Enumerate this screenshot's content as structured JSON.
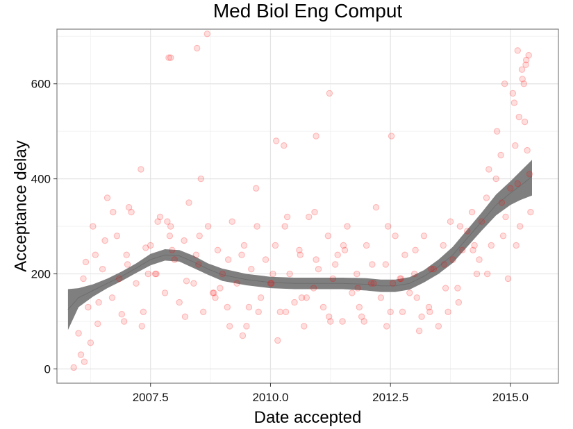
{
  "chart_data": {
    "type": "scatter",
    "title": "Med Biol Eng Comput",
    "xlabel": "Date accepted",
    "ylabel": "Acceptance delay",
    "xlim": [
      2005.55,
      2016.0
    ],
    "ylim": [
      -30,
      715
    ],
    "x_ticks": [
      2007.5,
      2010.0,
      2012.5,
      2015.0
    ],
    "x_tick_labels": [
      "2007.5",
      "2010.0",
      "2012.5",
      "2015.0"
    ],
    "y_ticks": [
      0,
      200,
      400,
      600
    ],
    "y_tick_labels": [
      "0",
      "200",
      "400",
      "600"
    ],
    "grid": true,
    "point_color": "#ff0000",
    "smooth_color": "#7f7f7f",
    "series": [
      {
        "kind": "points",
        "x": [
          2005.9,
          2006.0,
          2006.1,
          2006.15,
          2006.2,
          2006.3,
          2006.4,
          2006.5,
          2006.6,
          2006.7,
          2006.8,
          2006.9,
          2007.0,
          2007.1,
          2007.2,
          2007.3,
          2007.4,
          2007.5,
          2007.6,
          2007.7,
          2007.8,
          2007.9,
          2008.0,
          2008.1,
          2008.2,
          2008.3,
          2008.4,
          2008.5,
          2008.6,
          2008.7,
          2008.8,
          2008.9,
          2009.0,
          2009.1,
          2009.2,
          2009.3,
          2009.4,
          2009.5,
          2009.6,
          2009.7,
          2009.8,
          2009.9,
          2010.0,
          2010.1,
          2010.2,
          2010.3,
          2010.4,
          2010.5,
          2010.6,
          2010.7,
          2010.8,
          2010.9,
          2011.0,
          2011.1,
          2011.2,
          2011.3,
          2011.4,
          2011.5,
          2011.6,
          2011.7,
          2011.8,
          2011.9,
          2012.0,
          2012.1,
          2012.2,
          2012.3,
          2012.4,
          2012.5,
          2012.6,
          2012.7,
          2012.8,
          2012.9,
          2013.0,
          2013.1,
          2013.2,
          2013.3,
          2013.4,
          2013.5,
          2013.6,
          2013.7,
          2013.8,
          2013.9,
          2014.0,
          2014.1,
          2014.2,
          2014.3,
          2014.4,
          2014.5,
          2014.6,
          2014.7,
          2014.8,
          2014.9,
          2015.0,
          2015.1,
          2015.2,
          2015.3,
          2015.4,
          2006.05,
          2006.25,
          2006.55,
          2006.85,
          2007.05,
          2007.35,
          2007.65,
          2007.95,
          2008.25,
          2008.55,
          2008.85,
          2009.15,
          2009.45,
          2009.75,
          2010.05,
          2010.35,
          2010.65,
          2010.95,
          2011.25,
          2011.55,
          2011.85,
          2012.15,
          2012.45,
          2012.75,
          2013.05,
          2013.35,
          2013.65,
          2013.95,
          2014.25,
          2014.55,
          2014.85,
          2015.15,
          2015.35,
          2006.12,
          2006.42,
          2006.72,
          2007.02,
          2007.32,
          2007.62,
          2007.92,
          2008.22,
          2008.52,
          2008.82,
          2009.12,
          2009.42,
          2009.72,
          2010.02,
          2010.32,
          2010.62,
          2010.92,
          2011.22,
          2011.52,
          2011.82,
          2012.12,
          2012.42,
          2012.72,
          2013.02,
          2013.32,
          2013.62,
          2013.92,
          2014.22,
          2014.52,
          2014.82,
          2015.12,
          2015.42,
          2006.35,
          2006.95,
          2007.45,
          2007.85,
          2008.45,
          2008.95,
          2009.55,
          2010.15,
          2010.75,
          2011.35,
          2011.95,
          2012.55,
          2013.15,
          2013.75,
          2014.35,
          2014.95,
          2015.05,
          2015.25,
          2015.32,
          2015.38,
          2007.88,
          2007.92,
          2008.47,
          2008.68,
          2010.12,
          2010.28,
          2010.95,
          2011.23,
          2012.52,
          2014.72,
          2014.88,
          2015.08,
          2015.18,
          2015.28,
          2015.33,
          2015.24,
          2015.15
        ],
        "y": [
          3,
          75,
          190,
          225,
          130,
          300,
          95,
          210,
          360,
          150,
          280,
          115,
          240,
          330,
          180,
          420,
          255,
          260,
          200,
          320,
          160,
          280,
          230,
          140,
          270,
          350,
          180,
          220,
          120,
          300,
          160,
          250,
          200,
          130,
          310,
          180,
          240,
          90,
          210,
          380,
          150,
          230,
          180,
          260,
          120,
          300,
          200,
          140,
          250,
          90,
          320,
          170,
          210,
          130,
          280,
          190,
          240,
          100,
          300,
          160,
          200,
          110,
          260,
          180,
          340,
          150,
          220,
          120,
          280,
          190,
          240,
          160,
          200,
          80,
          280,
          130,
          210,
          90,
          260,
          120,
          230,
          170,
          250,
          290,
          330,
          200,
          310,
          360,
          260,
          400,
          450,
          320,
          380,
          470,
          300,
          520,
          410,
          30,
          55,
          270,
          190,
          340,
          120,
          310,
          250,
          185,
          400,
          150,
          90,
          260,
          120,
          200,
          320,
          150,
          230,
          100,
          250,
          130,
          180,
          300,
          120,
          150,
          210,
          170,
          300,
          260,
          420,
          280,
          390,
          460,
          15,
          140,
          330,
          220,
          90,
          200,
          300,
          110,
          280,
          160,
          230,
          70,
          300,
          180,
          120,
          240,
          330,
          110,
          260,
          170,
          220,
          90,
          190,
          250,
          120,
          220,
          140,
          250,
          200,
          350,
          260,
          330,
          240,
          100,
          200,
          310,
          240,
          170,
          130,
          60,
          150,
          220,
          100,
          180,
          110,
          310,
          230,
          190,
          580,
          610,
          640,
          660,
          655,
          655,
          675,
          705,
          480,
          470,
          490,
          580,
          490,
          500,
          600,
          560,
          530,
          600,
          650,
          630,
          670
        ]
      },
      {
        "kind": "smooth",
        "x": [
          2005.78,
          2006.0,
          2006.3,
          2006.6,
          2006.9,
          2007.2,
          2007.5,
          2007.8,
          2008.1,
          2008.4,
          2008.7,
          2009.0,
          2009.5,
          2010.0,
          2010.5,
          2011.0,
          2011.5,
          2012.0,
          2012.3,
          2012.6,
          2012.9,
          2013.2,
          2013.5,
          2013.8,
          2014.1,
          2014.4,
          2014.7,
          2015.0,
          2015.2,
          2015.45
        ],
        "y": [
          125,
          150,
          165,
          180,
          195,
          212,
          230,
          240,
          238,
          225,
          210,
          198,
          188,
          182,
          180,
          180,
          180,
          178,
          175,
          175,
          180,
          195,
          215,
          240,
          275,
          310,
          345,
          370,
          385,
          405
        ],
        "lower": [
          82,
          130,
          152,
          170,
          185,
          202,
          218,
          228,
          226,
          212,
          198,
          185,
          176,
          170,
          168,
          168,
          168,
          165,
          162,
          162,
          167,
          182,
          200,
          223,
          257,
          291,
          323,
          345,
          355,
          365
        ],
        "upper": [
          168,
          170,
          178,
          190,
          205,
          222,
          242,
          252,
          250,
          238,
          222,
          211,
          200,
          194,
          192,
          192,
          192,
          191,
          188,
          188,
          193,
          208,
          230,
          257,
          293,
          329,
          367,
          395,
          415,
          440
        ]
      }
    ]
  }
}
